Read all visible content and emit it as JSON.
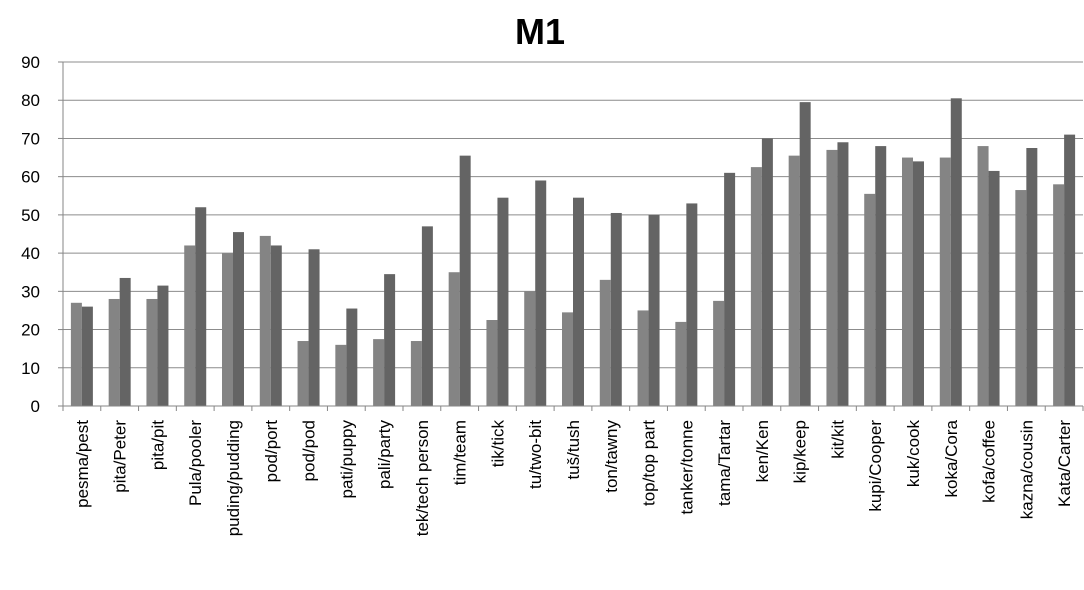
{
  "chart_data": {
    "type": "bar",
    "title": "M1",
    "xlabel": "",
    "ylabel": "",
    "ylim": [
      0,
      90
    ],
    "yticks": [
      "0",
      "10",
      "20",
      "30",
      "40",
      "50",
      "60",
      "70",
      "80",
      "90"
    ],
    "grid": true,
    "legend": "none",
    "categories": [
      "pesma/pest",
      "pita/Peter",
      "pita/pit",
      "Pula/pooler",
      "puding/pudding",
      "pod/port",
      "pod/pod",
      "pati/puppy",
      "pali/party",
      "tek/tech person",
      "tim/team",
      "tik/tick",
      "tu/two-bit",
      "tuš/tush",
      "ton/tawny",
      "top/top part",
      "tanker/tonne",
      "tama/Tartar",
      "ken/Ken",
      "kip/keep",
      "kit/kit",
      "kupi/Cooper",
      "kuk/cook",
      "koka/Cora",
      "kofa/coffee",
      "kazna/cousin",
      "Kata/Carter"
    ],
    "series": [
      {
        "color": "#848484",
        "values": [
          27,
          28,
          28,
          42,
          40,
          44.5,
          17,
          16,
          17.5,
          17,
          35,
          22.5,
          30,
          24.5,
          33,
          25,
          22,
          27.5,
          62.5,
          65.5,
          67,
          55.5,
          65,
          65,
          68,
          56.5,
          58
        ]
      },
      {
        "color": "#646464",
        "values": [
          26,
          33.5,
          31.5,
          52,
          45.5,
          42,
          41,
          25.5,
          34.5,
          47,
          65.5,
          54.5,
          59,
          54.5,
          50.5,
          50,
          53,
          61,
          70,
          79.5,
          69,
          68,
          64,
          80.5,
          61.5,
          67.5,
          71
        ]
      }
    ]
  }
}
